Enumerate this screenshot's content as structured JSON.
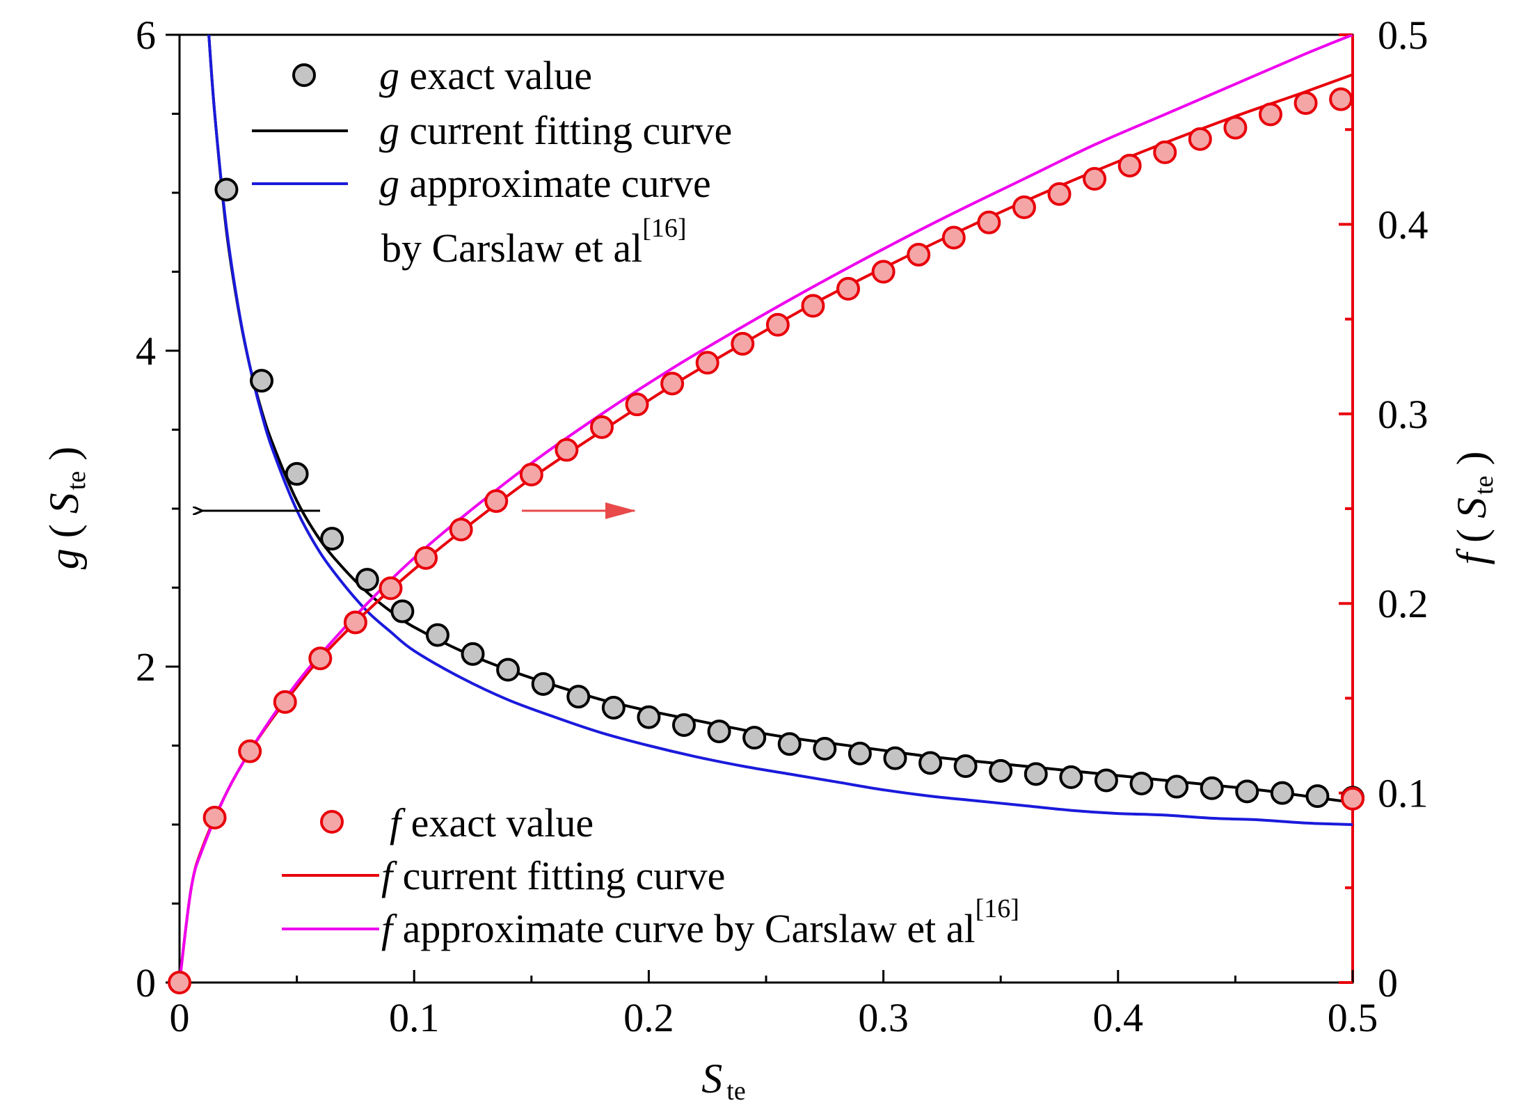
{
  "chart_data": {
    "type": "scatter",
    "x_axis": {
      "label_main": "S",
      "label_sub": "te",
      "range": [
        0,
        0.5
      ],
      "tick_labels": [
        "0",
        "0.1",
        "0.2",
        "0.3",
        "0.4",
        "0.5"
      ]
    },
    "y_axis_left": {
      "label_func": "g",
      "label_var": "S",
      "label_sub": "te",
      "range": [
        0,
        6
      ],
      "tick_labels": [
        "0",
        "2",
        "4",
        "6"
      ],
      "color": "#000000"
    },
    "y_axis_right": {
      "label_func": "f",
      "label_var": "S",
      "label_sub": "te",
      "range": [
        0,
        0.5
      ],
      "tick_labels": [
        "0",
        "0.1",
        "0.2",
        "0.3",
        "0.4",
        "0.5"
      ],
      "color": "#e8000b"
    },
    "legend_g": {
      "exact": {
        "sym": "g",
        "text": "exact value"
      },
      "fit": {
        "sym": "g",
        "text": "current fitting curve"
      },
      "approx": {
        "sym": "g",
        "text": "approximate curve",
        "text2": "by Carslaw et al",
        "ref": "[16]"
      }
    },
    "legend_f": {
      "exact": {
        "sym": "f",
        "text": "exact value"
      },
      "fit": {
        "sym": "f",
        "text": "current fitting curve"
      },
      "approx": {
        "sym": "f",
        "text": "approximate curve by Carslaw et al",
        "ref": "[16]"
      }
    },
    "series": [
      {
        "name": "g exact value",
        "axis": "left",
        "kind": "markers",
        "x": [
          0.02,
          0.035,
          0.05,
          0.065,
          0.08,
          0.095,
          0.11,
          0.125,
          0.14,
          0.155,
          0.17,
          0.185,
          0.2,
          0.215,
          0.23,
          0.245,
          0.26,
          0.275,
          0.29,
          0.305,
          0.32,
          0.335,
          0.35,
          0.365,
          0.38,
          0.395,
          0.41,
          0.425,
          0.44,
          0.455,
          0.47,
          0.485,
          0.5
        ],
        "y": [
          5.02,
          3.81,
          3.22,
          2.81,
          2.55,
          2.35,
          2.2,
          2.08,
          1.98,
          1.89,
          1.81,
          1.74,
          1.68,
          1.63,
          1.59,
          1.55,
          1.51,
          1.48,
          1.45,
          1.42,
          1.39,
          1.37,
          1.34,
          1.32,
          1.3,
          1.28,
          1.26,
          1.24,
          1.23,
          1.21,
          1.2,
          1.18,
          1.17
        ]
      },
      {
        "name": "g current fitting curve",
        "axis": "left",
        "kind": "line",
        "color": "#000000",
        "x": [
          0.0125,
          0.015,
          0.02,
          0.025,
          0.03,
          0.035,
          0.04,
          0.05,
          0.06,
          0.07,
          0.08,
          0.09,
          0.1,
          0.12,
          0.14,
          0.16,
          0.18,
          0.2,
          0.22,
          0.24,
          0.26,
          0.28,
          0.3,
          0.32,
          0.34,
          0.36,
          0.38,
          0.4,
          0.42,
          0.44,
          0.46,
          0.48,
          0.5
        ],
        "y": [
          6.0,
          5.5,
          4.76,
          4.27,
          3.9,
          3.62,
          3.4,
          3.05,
          2.8,
          2.62,
          2.47,
          2.35,
          2.25,
          2.1,
          1.98,
          1.88,
          1.79,
          1.72,
          1.66,
          1.6,
          1.55,
          1.51,
          1.47,
          1.43,
          1.4,
          1.37,
          1.34,
          1.31,
          1.28,
          1.25,
          1.22,
          1.18,
          1.14
        ]
      },
      {
        "name": "g approximate curve by Carslaw et al",
        "axis": "left",
        "kind": "line",
        "color": "#1a1adc",
        "x": [
          0.0125,
          0.015,
          0.02,
          0.025,
          0.03,
          0.035,
          0.04,
          0.05,
          0.06,
          0.07,
          0.08,
          0.09,
          0.1,
          0.12,
          0.14,
          0.16,
          0.18,
          0.2,
          0.22,
          0.24,
          0.26,
          0.28,
          0.3,
          0.32,
          0.34,
          0.36,
          0.38,
          0.4,
          0.42,
          0.44,
          0.46,
          0.48,
          0.5
        ],
        "y": [
          6.0,
          5.5,
          4.78,
          4.28,
          3.9,
          3.6,
          3.36,
          2.99,
          2.72,
          2.52,
          2.35,
          2.22,
          2.1,
          1.93,
          1.79,
          1.68,
          1.58,
          1.5,
          1.43,
          1.37,
          1.32,
          1.27,
          1.22,
          1.18,
          1.15,
          1.12,
          1.09,
          1.07,
          1.06,
          1.04,
          1.03,
          1.01,
          1.0
        ]
      },
      {
        "name": "f exact value",
        "axis": "right",
        "kind": "markers",
        "x": [
          0.0,
          0.015,
          0.03,
          0.045,
          0.06,
          0.075,
          0.09,
          0.105,
          0.12,
          0.135,
          0.15,
          0.165,
          0.18,
          0.195,
          0.21,
          0.225,
          0.24,
          0.255,
          0.27,
          0.285,
          0.3,
          0.315,
          0.33,
          0.345,
          0.36,
          0.375,
          0.39,
          0.405,
          0.42,
          0.435,
          0.45,
          0.465,
          0.48,
          0.495,
          0.5
        ],
        "y": [
          0.0,
          0.087,
          0.122,
          0.148,
          0.171,
          0.19,
          0.208,
          0.224,
          0.239,
          0.254,
          0.268,
          0.281,
          0.293,
          0.305,
          0.316,
          0.327,
          0.337,
          0.347,
          0.357,
          0.366,
          0.375,
          0.384,
          0.393,
          0.401,
          0.409,
          0.416,
          0.424,
          0.431,
          0.438,
          0.445,
          0.451,
          0.458,
          0.464,
          0.466,
          0.097
        ]
      },
      {
        "name": "f current fitting curve",
        "axis": "right",
        "kind": "line",
        "color": "#e8000b",
        "x": [
          0.0,
          0.005,
          0.01,
          0.02,
          0.03,
          0.04,
          0.05,
          0.06,
          0.08,
          0.1,
          0.12,
          0.15,
          0.18,
          0.21,
          0.24,
          0.27,
          0.3,
          0.33,
          0.36,
          0.39,
          0.42,
          0.45,
          0.48,
          0.5
        ],
        "y": [
          0.0,
          0.05,
          0.072,
          0.1,
          0.122,
          0.14,
          0.156,
          0.171,
          0.196,
          0.218,
          0.238,
          0.266,
          0.291,
          0.315,
          0.337,
          0.358,
          0.377,
          0.395,
          0.412,
          0.428,
          0.443,
          0.457,
          0.47,
          0.479
        ]
      },
      {
        "name": "f approximate curve by Carslaw et al",
        "axis": "right",
        "kind": "line",
        "color": "#ee00ee",
        "x": [
          0.0,
          0.005,
          0.01,
          0.02,
          0.03,
          0.04,
          0.05,
          0.06,
          0.08,
          0.1,
          0.12,
          0.15,
          0.18,
          0.21,
          0.24,
          0.27,
          0.3,
          0.33,
          0.36,
          0.39,
          0.42,
          0.45,
          0.48,
          0.5
        ],
        "y": [
          0.0,
          0.05,
          0.071,
          0.1,
          0.122,
          0.141,
          0.158,
          0.173,
          0.2,
          0.224,
          0.245,
          0.274,
          0.3,
          0.324,
          0.346,
          0.367,
          0.387,
          0.406,
          0.424,
          0.442,
          0.458,
          0.474,
          0.49,
          0.5
        ]
      }
    ],
    "annotations": [
      {
        "type": "arrow",
        "direction": "left",
        "color": "#000000"
      },
      {
        "type": "arrow",
        "direction": "right",
        "color": "#e84a4a"
      }
    ],
    "grid": false
  }
}
